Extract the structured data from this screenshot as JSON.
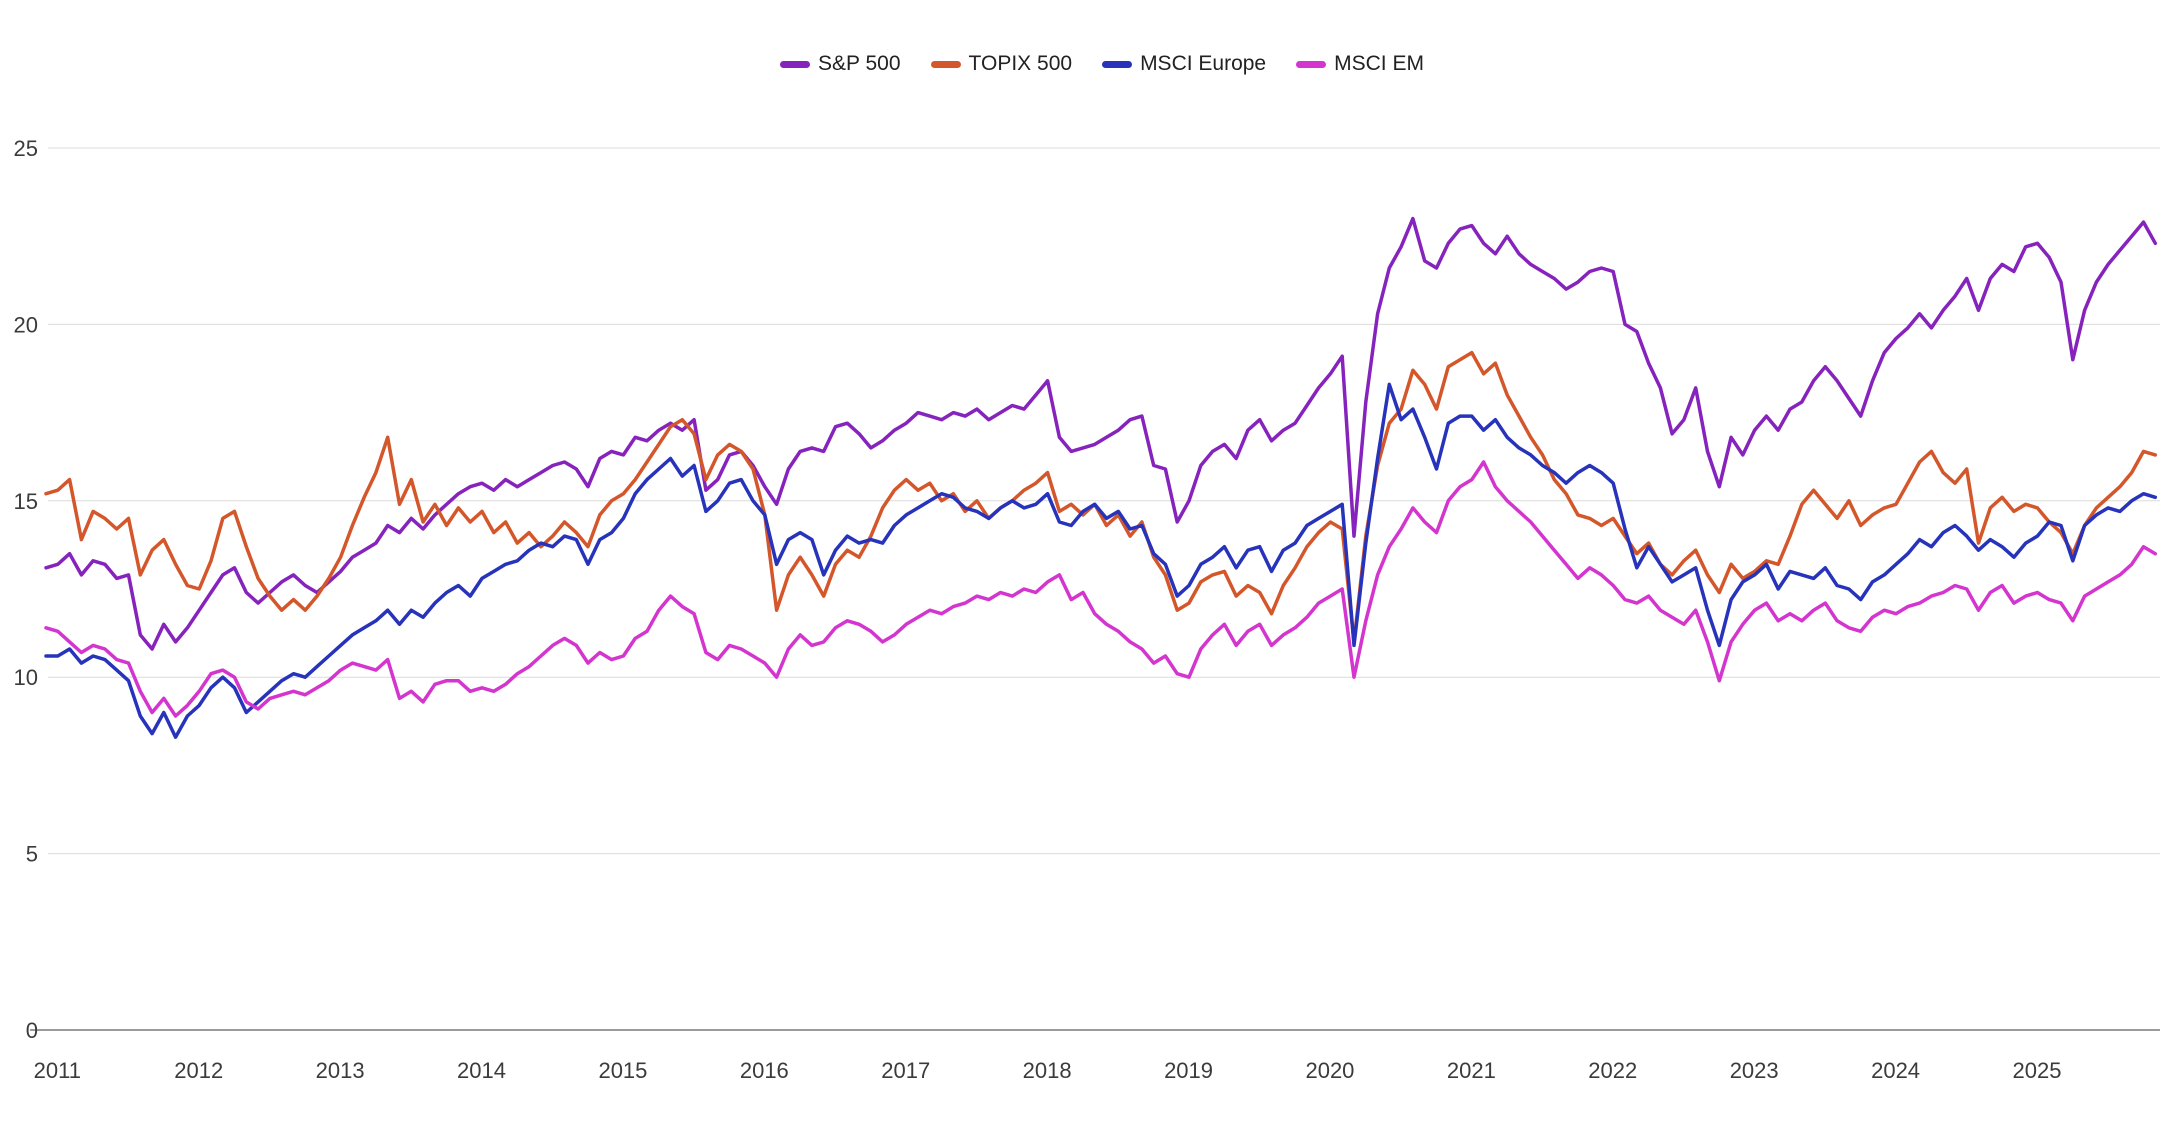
{
  "chart_data": {
    "type": "line",
    "title": "",
    "legend_position": "top-center",
    "grid": "horizontal",
    "background": "#FFFFFF",
    "colors": {
      "gridline": "#DCDCDC",
      "axis_line": "#7A7A7A",
      "tick_label": "#3B3B3B",
      "legend_label": "#222222"
    },
    "x_axis": {
      "label": "",
      "tick_years": [
        2011,
        2012,
        2013,
        2014,
        2015,
        2016,
        2017,
        2018,
        2019,
        2020,
        2021,
        2022,
        2023,
        2024,
        2025
      ],
      "domain_start": 2010.92,
      "domain_end": 2025.87,
      "points_start": 2010.92,
      "points_step": 0.083333
    },
    "y_axis": {
      "label": "",
      "ticks": [
        0,
        5,
        10,
        15,
        20,
        25
      ],
      "range": [
        0,
        25
      ]
    },
    "series": [
      {
        "name": "S&P 500",
        "slug": "sp-500",
        "color": "#8623BC",
        "values": [
          13.1,
          13.2,
          13.5,
          12.9,
          13.3,
          13.2,
          12.8,
          12.9,
          11.2,
          10.8,
          11.5,
          11.0,
          11.4,
          11.9,
          12.4,
          12.9,
          13.1,
          12.4,
          12.1,
          12.4,
          12.7,
          12.9,
          12.6,
          12.4,
          12.7,
          13.0,
          13.4,
          13.6,
          13.8,
          14.3,
          14.1,
          14.5,
          14.2,
          14.6,
          14.9,
          15.2,
          15.4,
          15.5,
          15.3,
          15.6,
          15.4,
          15.6,
          15.8,
          16.0,
          16.1,
          15.9,
          15.4,
          16.2,
          16.4,
          16.3,
          16.8,
          16.7,
          17.0,
          17.2,
          17.0,
          17.3,
          15.3,
          15.6,
          16.3,
          16.4,
          16.0,
          15.4,
          14.9,
          15.9,
          16.4,
          16.5,
          16.4,
          17.1,
          17.2,
          16.9,
          16.5,
          16.7,
          17.0,
          17.2,
          17.5,
          17.4,
          17.3,
          17.5,
          17.4,
          17.6,
          17.3,
          17.5,
          17.7,
          17.6,
          18.0,
          18.4,
          16.8,
          16.4,
          16.5,
          16.6,
          16.8,
          17.0,
          17.3,
          17.4,
          16.0,
          15.9,
          14.4,
          15.0,
          16.0,
          16.4,
          16.6,
          16.2,
          17.0,
          17.3,
          16.7,
          17.0,
          17.2,
          17.7,
          18.2,
          18.6,
          19.1,
          14.0,
          17.8,
          20.3,
          21.6,
          22.2,
          23.0,
          21.8,
          21.6,
          22.3,
          22.7,
          22.8,
          22.3,
          22.0,
          22.5,
          22.0,
          21.7,
          21.5,
          21.3,
          21.0,
          21.2,
          21.5,
          21.6,
          21.5,
          20.0,
          19.8,
          18.9,
          18.2,
          16.9,
          17.3,
          18.2,
          16.4,
          15.4,
          16.8,
          16.3,
          17.0,
          17.4,
          17.0,
          17.6,
          17.8,
          18.4,
          18.8,
          18.4,
          17.9,
          17.4,
          18.4,
          19.2,
          19.6,
          19.9,
          20.3,
          19.9,
          20.4,
          20.8,
          21.3,
          20.4,
          21.3,
          21.7,
          21.5,
          22.2,
          22.3,
          21.9,
          21.2,
          19.0,
          20.4,
          21.2,
          21.7,
          22.1,
          22.5,
          22.9,
          22.3
        ]
      },
      {
        "name": "TOPIX 500",
        "slug": "topix-500",
        "color": "#D4572B",
        "values": [
          15.2,
          15.3,
          15.6,
          13.9,
          14.7,
          14.5,
          14.2,
          14.5,
          12.9,
          13.6,
          13.9,
          13.2,
          12.6,
          12.5,
          13.3,
          14.5,
          14.7,
          13.7,
          12.8,
          12.3,
          11.9,
          12.2,
          11.9,
          12.3,
          12.8,
          13.4,
          14.3,
          15.1,
          15.8,
          16.8,
          14.9,
          15.6,
          14.4,
          14.9,
          14.3,
          14.8,
          14.4,
          14.7,
          14.1,
          14.4,
          13.8,
          14.1,
          13.7,
          14.0,
          14.4,
          14.1,
          13.7,
          14.6,
          15.0,
          15.2,
          15.6,
          16.1,
          16.6,
          17.1,
          17.3,
          16.9,
          15.6,
          16.3,
          16.6,
          16.4,
          15.9,
          14.6,
          11.9,
          12.9,
          13.4,
          12.9,
          12.3,
          13.2,
          13.6,
          13.4,
          14.0,
          14.8,
          15.3,
          15.6,
          15.3,
          15.5,
          15.0,
          15.2,
          14.7,
          15.0,
          14.5,
          14.8,
          15.0,
          15.3,
          15.5,
          15.8,
          14.7,
          14.9,
          14.6,
          14.9,
          14.3,
          14.6,
          14.0,
          14.4,
          13.4,
          12.9,
          11.9,
          12.1,
          12.7,
          12.9,
          13.0,
          12.3,
          12.6,
          12.4,
          11.8,
          12.6,
          13.1,
          13.7,
          14.1,
          14.4,
          14.2,
          11.0,
          14.0,
          16.0,
          17.2,
          17.6,
          18.7,
          18.3,
          17.6,
          18.8,
          19.0,
          19.2,
          18.6,
          18.9,
          18.0,
          17.4,
          16.8,
          16.3,
          15.6,
          15.2,
          14.6,
          14.5,
          14.3,
          14.5,
          14.0,
          13.5,
          13.8,
          13.2,
          12.9,
          13.3,
          13.6,
          12.9,
          12.4,
          13.2,
          12.8,
          13.0,
          13.3,
          13.2,
          14.0,
          14.9,
          15.3,
          14.9,
          14.5,
          15.0,
          14.3,
          14.6,
          14.8,
          14.9,
          15.5,
          16.1,
          16.4,
          15.8,
          15.5,
          15.9,
          13.8,
          14.8,
          15.1,
          14.7,
          14.9,
          14.8,
          14.4,
          14.1,
          13.5,
          14.3,
          14.8,
          15.1,
          15.4,
          15.8,
          16.4,
          16.3
        ]
      },
      {
        "name": "MSCI Europe",
        "slug": "msci-europe",
        "color": "#2633BA",
        "values": [
          10.6,
          10.6,
          10.8,
          10.4,
          10.6,
          10.5,
          10.2,
          9.9,
          8.9,
          8.4,
          9.0,
          8.3,
          8.9,
          9.2,
          9.7,
          10.0,
          9.7,
          9.0,
          9.3,
          9.6,
          9.9,
          10.1,
          10.0,
          10.3,
          10.6,
          10.9,
          11.2,
          11.4,
          11.6,
          11.9,
          11.5,
          11.9,
          11.7,
          12.1,
          12.4,
          12.6,
          12.3,
          12.8,
          13.0,
          13.2,
          13.3,
          13.6,
          13.8,
          13.7,
          14.0,
          13.9,
          13.2,
          13.9,
          14.1,
          14.5,
          15.2,
          15.6,
          15.9,
          16.2,
          15.7,
          16.0,
          14.7,
          15.0,
          15.5,
          15.6,
          15.0,
          14.6,
          13.2,
          13.9,
          14.1,
          13.9,
          12.9,
          13.6,
          14.0,
          13.8,
          13.9,
          13.8,
          14.3,
          14.6,
          14.8,
          15.0,
          15.2,
          15.1,
          14.8,
          14.7,
          14.5,
          14.8,
          15.0,
          14.8,
          14.9,
          15.2,
          14.4,
          14.3,
          14.7,
          14.9,
          14.5,
          14.7,
          14.2,
          14.3,
          13.5,
          13.2,
          12.3,
          12.6,
          13.2,
          13.4,
          13.7,
          13.1,
          13.6,
          13.7,
          13.0,
          13.6,
          13.8,
          14.3,
          14.5,
          14.7,
          14.9,
          10.9,
          13.8,
          16.2,
          18.3,
          17.3,
          17.6,
          16.8,
          15.9,
          17.2,
          17.4,
          17.4,
          17.0,
          17.3,
          16.8,
          16.5,
          16.3,
          16.0,
          15.8,
          15.5,
          15.8,
          16.0,
          15.8,
          15.5,
          14.2,
          13.1,
          13.7,
          13.2,
          12.7,
          12.9,
          13.1,
          11.9,
          10.9,
          12.2,
          12.7,
          12.9,
          13.2,
          12.5,
          13.0,
          12.9,
          12.8,
          13.1,
          12.6,
          12.5,
          12.2,
          12.7,
          12.9,
          13.2,
          13.5,
          13.9,
          13.7,
          14.1,
          14.3,
          14.0,
          13.6,
          13.9,
          13.7,
          13.4,
          13.8,
          14.0,
          14.4,
          14.3,
          13.3,
          14.3,
          14.6,
          14.8,
          14.7,
          15.0,
          15.2,
          15.1
        ]
      },
      {
        "name": "MSCI EM",
        "slug": "msci-em",
        "color": "#D335CE",
        "values": [
          11.4,
          11.3,
          11.0,
          10.7,
          10.9,
          10.8,
          10.5,
          10.4,
          9.6,
          9.0,
          9.4,
          8.9,
          9.2,
          9.6,
          10.1,
          10.2,
          10.0,
          9.3,
          9.1,
          9.4,
          9.5,
          9.6,
          9.5,
          9.7,
          9.9,
          10.2,
          10.4,
          10.3,
          10.2,
          10.5,
          9.4,
          9.6,
          9.3,
          9.8,
          9.9,
          9.9,
          9.6,
          9.7,
          9.6,
          9.8,
          10.1,
          10.3,
          10.6,
          10.9,
          11.1,
          10.9,
          10.4,
          10.7,
          10.5,
          10.6,
          11.1,
          11.3,
          11.9,
          12.3,
          12.0,
          11.8,
          10.7,
          10.5,
          10.9,
          10.8,
          10.6,
          10.4,
          10.0,
          10.8,
          11.2,
          10.9,
          11.0,
          11.4,
          11.6,
          11.5,
          11.3,
          11.0,
          11.2,
          11.5,
          11.7,
          11.9,
          11.8,
          12.0,
          12.1,
          12.3,
          12.2,
          12.4,
          12.3,
          12.5,
          12.4,
          12.7,
          12.9,
          12.2,
          12.4,
          11.8,
          11.5,
          11.3,
          11.0,
          10.8,
          10.4,
          10.6,
          10.1,
          10.0,
          10.8,
          11.2,
          11.5,
          10.9,
          11.3,
          11.5,
          10.9,
          11.2,
          11.4,
          11.7,
          12.1,
          12.3,
          12.5,
          10.0,
          11.6,
          12.9,
          13.7,
          14.2,
          14.8,
          14.4,
          14.1,
          15.0,
          15.4,
          15.6,
          16.1,
          15.4,
          15.0,
          14.7,
          14.4,
          14.0,
          13.6,
          13.2,
          12.8,
          13.1,
          12.9,
          12.6,
          12.2,
          12.1,
          12.3,
          11.9,
          11.7,
          11.5,
          11.9,
          11.0,
          9.9,
          11.0,
          11.5,
          11.9,
          12.1,
          11.6,
          11.8,
          11.6,
          11.9,
          12.1,
          11.6,
          11.4,
          11.3,
          11.7,
          11.9,
          11.8,
          12.0,
          12.1,
          12.3,
          12.4,
          12.6,
          12.5,
          11.9,
          12.4,
          12.6,
          12.1,
          12.3,
          12.4,
          12.2,
          12.1,
          11.6,
          12.3,
          12.5,
          12.7,
          12.9,
          13.2,
          13.7,
          13.5
        ]
      }
    ]
  }
}
